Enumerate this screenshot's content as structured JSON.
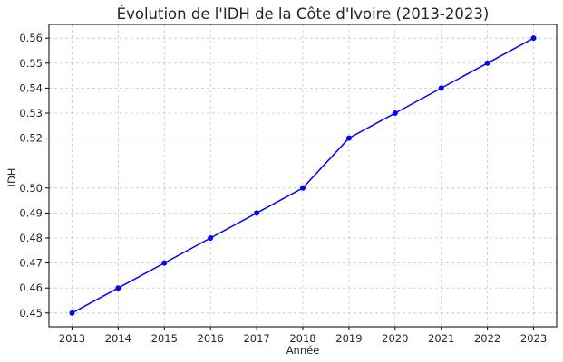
{
  "chart_data": {
    "type": "line",
    "title": "Évolution de l'IDH de la Côte d'Ivoire (2013-2023)",
    "xlabel": "Année",
    "ylabel": "IDH",
    "x": [
      2013,
      2014,
      2015,
      2016,
      2017,
      2018,
      2019,
      2020,
      2021,
      2022,
      2023
    ],
    "series": [
      {
        "values": [
          0.45,
          0.46,
          0.47,
          0.48,
          0.49,
          0.5,
          0.52,
          0.53,
          0.54,
          0.55,
          0.56
        ],
        "color": "#0000ff"
      }
    ],
    "xticks": [
      "2013",
      "2014",
      "2015",
      "2016",
      "2017",
      "2018",
      "2019",
      "2020",
      "2021",
      "2022",
      "2023"
    ],
    "yticks": [
      0.45,
      0.46,
      0.47,
      0.48,
      0.49,
      0.5,
      0.52,
      0.53,
      0.54,
      0.55,
      0.56
    ],
    "ytick_labels": [
      "0.45",
      "0.46",
      "0.47",
      "0.48",
      "0.49",
      "0.50",
      "0.52",
      "0.53",
      "0.54",
      "0.55",
      "0.56"
    ],
    "xlim": [
      2012.5,
      2023.5
    ],
    "ylim": [
      0.4445,
      0.5655
    ],
    "grid": true,
    "marker": "circle"
  }
}
